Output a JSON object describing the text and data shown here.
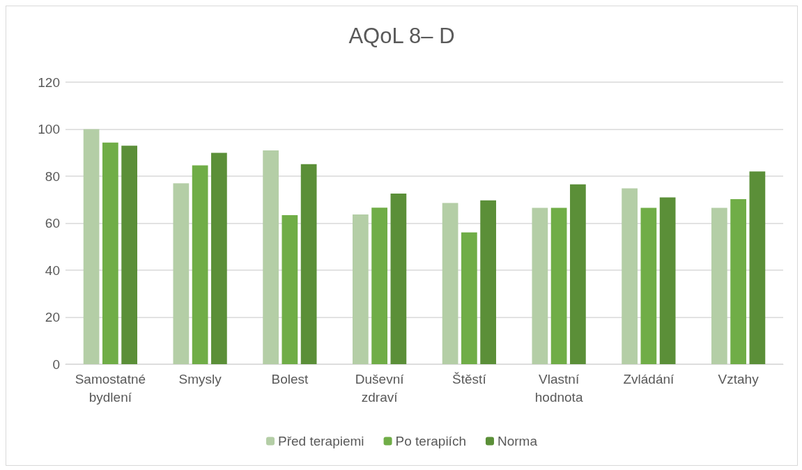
{
  "chart_data": {
    "type": "bar",
    "title": "AQoL 8– D",
    "categories": [
      "Samostatné bydlení",
      "Smysly",
      "Bolest",
      "Duševní zdraví",
      "Štěstí",
      "Vlastní hodnota",
      "Zvládání",
      "Vztahy"
    ],
    "series": [
      {
        "name": "Před terapiemi",
        "color": "#b4cea6",
        "values": [
          100,
          77,
          91,
          63.7,
          68.6,
          66.5,
          74.8,
          66.5
        ]
      },
      {
        "name": "Po terapiích",
        "color": "#70ad47",
        "values": [
          94.3,
          84.6,
          63.4,
          66.6,
          56.1,
          66.5,
          66.5,
          70.2
        ]
      },
      {
        "name": "Norma",
        "color": "#5b8f38",
        "values": [
          93,
          89.9,
          85.1,
          72.6,
          69.7,
          76.5,
          71,
          82
        ]
      }
    ],
    "ylim": [
      0,
      120
    ],
    "yticks": [
      0,
      20,
      40,
      60,
      80,
      100,
      120
    ],
    "grid": "y",
    "legend": "bottom"
  }
}
